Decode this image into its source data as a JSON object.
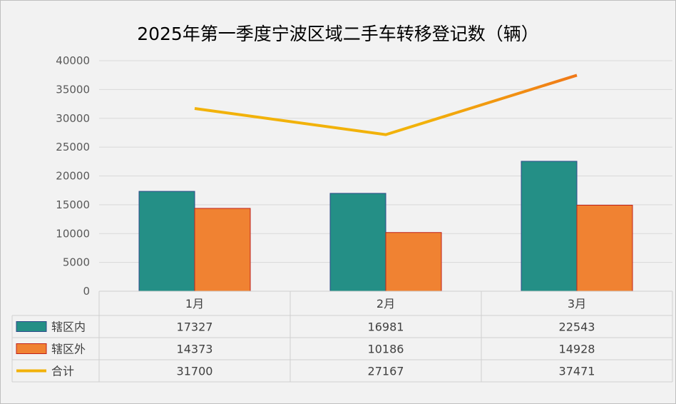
{
  "chart_data": {
    "type": "bar",
    "title": "2025年第一季度宁波区域二手车转移登记数（辆）",
    "categories": [
      "1月",
      "2月",
      "3月"
    ],
    "series": [
      {
        "name": "辖区内",
        "type": "bar",
        "values": [
          17327,
          16981,
          22543
        ],
        "color": "#248f86",
        "edge": "#2e4a8a"
      },
      {
        "name": "辖区外",
        "type": "bar",
        "values": [
          14373,
          10186,
          14928
        ],
        "color": "#f08232",
        "edge": "#c0201a"
      },
      {
        "name": "合计",
        "type": "line",
        "values": [
          31700,
          27167,
          37471
        ],
        "color": "#f2b20a",
        "color_end": "#f07818"
      }
    ],
    "ylim": [
      0,
      40000
    ],
    "yticks": [
      "0",
      "5000",
      "10000",
      "15000",
      "20000",
      "25000",
      "30000",
      "35000",
      "40000"
    ],
    "table": {
      "rows": [
        {
          "name": "辖区内",
          "cells": [
            "17327",
            "16981",
            "22543"
          ]
        },
        {
          "name": "辖区外",
          "cells": [
            "14373",
            "10186",
            "14928"
          ]
        },
        {
          "name": "合计",
          "cells": [
            "31700",
            "27167",
            "37471"
          ]
        }
      ]
    },
    "grid": true,
    "legend": "data-table"
  }
}
